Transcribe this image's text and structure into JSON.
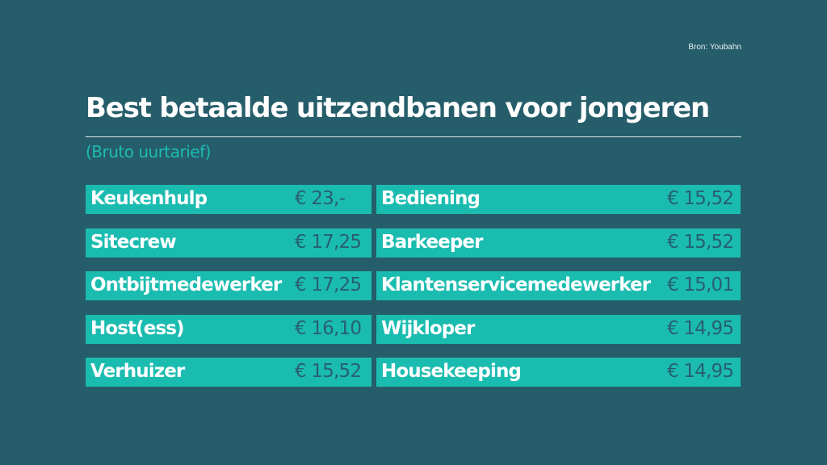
{
  "source": "Bron: Youbahn",
  "title": "Best betaalde uitzendbanen voor jongeren",
  "subtitle": "(Bruto uurtarief)",
  "colors": {
    "background": "#265d6b",
    "bar": "#1bbcb0",
    "value_text": "#27606f",
    "label_text": "#ffffff"
  },
  "chart_data": {
    "type": "table",
    "title": "Best betaalde uitzendbanen voor jongeren",
    "subtitle": "(Bruto uurtarief)",
    "unit": "€ per uur",
    "rows": [
      {
        "job": "Keukenhulp",
        "label": "€ 23,-",
        "value": 23.0
      },
      {
        "job": "Sitecrew",
        "label": "€ 17,25",
        "value": 17.25
      },
      {
        "job": "Ontbijtmedewerker",
        "label": "€ 17,25",
        "value": 17.25
      },
      {
        "job": "Host(ess)",
        "label": "€ 16,10",
        "value": 16.1
      },
      {
        "job": "Verhuizer",
        "label": "€ 15,52",
        "value": 15.52
      },
      {
        "job": "Bediening",
        "label": "€ 15,52",
        "value": 15.52
      },
      {
        "job": "Barkeeper",
        "label": "€ 15,52",
        "value": 15.52
      },
      {
        "job": "Klantenservicemedewerker",
        "label": "€ 15,01",
        "value": 15.01
      },
      {
        "job": "Wijkloper",
        "label": "€ 14,95",
        "value": 14.95
      },
      {
        "job": "Housekeeping",
        "label": "€ 14,95",
        "value": 14.95
      }
    ]
  }
}
